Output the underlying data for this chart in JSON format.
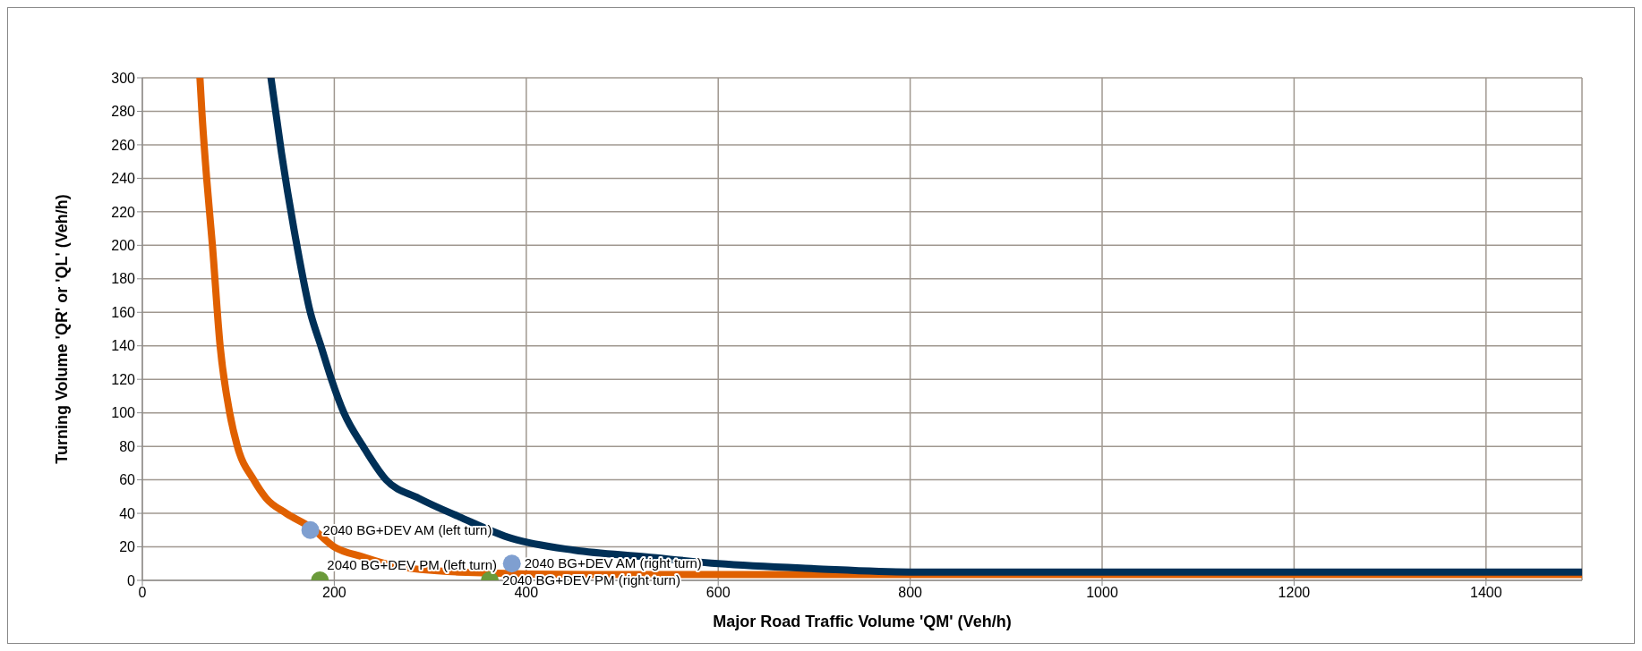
{
  "chart_data": {
    "type": "line",
    "xlabel": "Major Road Traffic Volume 'QM' (Veh/h)",
    "ylabel": "Turning Volume 'QR' or 'QL' (Veh/h)",
    "xlim": [
      0,
      1500
    ],
    "xticks": [
      0,
      200,
      400,
      600,
      800,
      1000,
      1200,
      1400
    ],
    "ylim": [
      0,
      300
    ],
    "yticks": [
      0,
      20,
      40,
      60,
      80,
      100,
      120,
      140,
      160,
      180,
      200,
      220,
      240,
      260,
      280,
      300
    ],
    "grid": true,
    "legend": false,
    "line_style": "solid",
    "series": [
      {
        "marker": "none",
        "color": "#e06000",
        "x": [
          60,
          62,
          67,
          73,
          81,
          91,
          99,
          116,
          129,
          150,
          177,
          200,
          230,
          260,
          329,
          467,
          1500
        ],
        "values": [
          300,
          280,
          240,
          200,
          140,
          100,
          80,
          60,
          49,
          40,
          31,
          20,
          14,
          9,
          5,
          3.5,
          3.5
        ]
      },
      {
        "marker": "none",
        "color": "#003057",
        "x": [
          134,
          145,
          161,
          175,
          186,
          197,
          210,
          230,
          254,
          288,
          330,
          385,
          450,
          525,
          600,
          700,
          800,
          1500
        ],
        "values": [
          300,
          255,
          200,
          160,
          140,
          120,
          100,
          80,
          60,
          49,
          38,
          25,
          18,
          14,
          10,
          7,
          5,
          5
        ]
      },
      {
        "type": "scatter",
        "marker": "circle",
        "name": "2040 BG+DEV AM (left turn)",
        "color": "#7f9fd0",
        "x": [
          175
        ],
        "values": [
          30
        ]
      },
      {
        "type": "scatter",
        "marker": "circle",
        "name": "2040 BG+DEV AM (right turn)",
        "color": "#7f9fd0",
        "x": [
          385
        ],
        "values": [
          10
        ]
      },
      {
        "type": "scatter",
        "marker": "circle",
        "name": "2040 BG+DEV PM (left turn)",
        "color": "#6a9a3a",
        "x": [
          185
        ],
        "values": [
          0
        ]
      },
      {
        "type": "scatter",
        "marker": "circle",
        "name": "2040 BG+DEV PM (right turn)",
        "color": "#6a9a3a",
        "x": [
          362
        ],
        "values": [
          0
        ]
      }
    ]
  }
}
